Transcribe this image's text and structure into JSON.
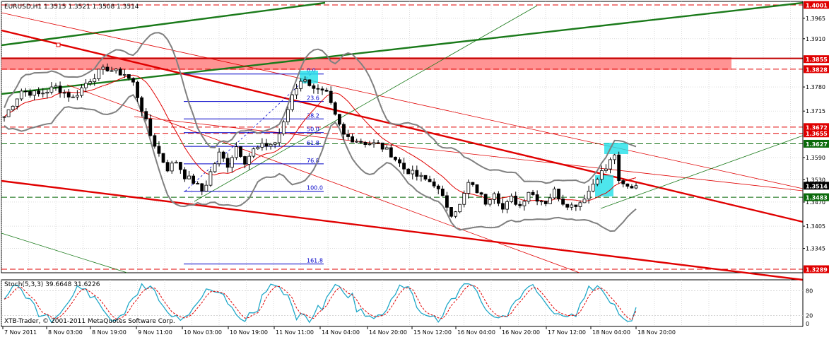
{
  "chart_data": [
    {
      "type": "candlestick",
      "symbol_header": "EURUSD,H1  1.3515 1.3521 1.3508 1.3514",
      "ylim": [
        1.3289,
        1.4001
      ],
      "price_ticks": [
        "1.3965",
        "1.3910",
        "1.3780",
        "1.3715",
        "1.3590",
        "1.3530",
        "1.3470",
        "1.3405",
        "1.3345"
      ],
      "price_tags": [
        {
          "label": "1.4001",
          "price": 1.4001,
          "color": "#e00000"
        },
        {
          "label": "1.3855",
          "price": 1.3855,
          "color": "#e00000"
        },
        {
          "label": "1.3828",
          "price": 1.3828,
          "color": "#e00000"
        },
        {
          "label": "1.3672",
          "price": 1.3672,
          "color": "#e00000"
        },
        {
          "label": "1.3655",
          "price": 1.3655,
          "color": "#e00000"
        },
        {
          "label": "1.3627",
          "price": 1.3627,
          "color": "#0a6a0a"
        },
        {
          "label": "1.3514",
          "price": 1.3514,
          "color": "#000000"
        },
        {
          "label": "1.3483",
          "price": 1.3483,
          "color": "#0a6a0a"
        },
        {
          "label": "1.3289",
          "price": 1.3289,
          "color": "#e00000"
        }
      ],
      "dashed_levels": [
        {
          "price": 1.4001,
          "color": "#e00000"
        },
        {
          "price": 1.3828,
          "color": "#e00000"
        },
        {
          "price": 1.3672,
          "color": "#e00000"
        },
        {
          "price": 1.3655,
          "color": "#e00000"
        },
        {
          "price": 1.3627,
          "color": "#0a6a0a"
        },
        {
          "price": 1.3483,
          "color": "#0a6a0a"
        },
        {
          "price": 1.3289,
          "color": "#e00000"
        }
      ],
      "resistance_zone": {
        "top": 1.386,
        "bottom": 1.3826,
        "color": "#ff8080"
      },
      "fibonacci": [
        {
          "label": "0.0",
          "price": 1.3815
        },
        {
          "label": "23.6",
          "price": 1.3741
        },
        {
          "label": "38.2",
          "price": 1.3694
        },
        {
          "label": "50.0",
          "price": 1.3657
        },
        {
          "label": "61.8",
          "price": 1.362
        },
        {
          "label": "76.8",
          "price": 1.3573
        },
        {
          "label": "100.0",
          "price": 1.3499
        },
        {
          "label": "161.8",
          "price": 1.3303
        }
      ],
      "x_ticks": [
        "7 Nov 2011",
        "8 Nov 03:00",
        "8 Nov 19:00",
        "9 Nov 11:00",
        "10 Nov 03:00",
        "10 Nov 19:00",
        "11 Nov 11:00",
        "14 Nov 04:00",
        "14 Nov 20:00",
        "15 Nov 12:00",
        "16 Nov 04:00",
        "16 Nov 20:00",
        "17 Nov 12:00",
        "18 Nov 04:00",
        "18 Nov 20:00"
      ],
      "close_path": [
        [
          0,
          1.37
        ],
        [
          4,
          1.377
        ],
        [
          8,
          1.376
        ],
        [
          12,
          1.378
        ],
        [
          16,
          1.375
        ],
        [
          19,
          1.379
        ],
        [
          22,
          1.382
        ],
        [
          24,
          1.383
        ],
        [
          26,
          1.382
        ],
        [
          28,
          1.3815
        ],
        [
          30,
          1.379
        ],
        [
          32,
          1.372
        ],
        [
          34,
          1.365
        ],
        [
          36,
          1.36
        ],
        [
          38,
          1.356
        ],
        [
          40,
          1.358
        ],
        [
          42,
          1.354
        ],
        [
          44,
          1.3525
        ],
        [
          46,
          1.35
        ],
        [
          47,
          1.352
        ],
        [
          48,
          1.355
        ],
        [
          50,
          1.36
        ],
        [
          52,
          1.357
        ],
        [
          54,
          1.362
        ],
        [
          56,
          1.358
        ],
        [
          58,
          1.361
        ],
        [
          60,
          1.362
        ],
        [
          63,
          1.363
        ],
        [
          65,
          1.368
        ],
        [
          67,
          1.376
        ],
        [
          69,
          1.38
        ],
        [
          71,
          1.379
        ],
        [
          73,
          1.377
        ],
        [
          75,
          1.376
        ],
        [
          77,
          1.37
        ],
        [
          79,
          1.365
        ],
        [
          81,
          1.364
        ],
        [
          84,
          1.363
        ],
        [
          87,
          1.3625
        ],
        [
          90,
          1.36
        ],
        [
          93,
          1.356
        ],
        [
          96,
          1.354
        ],
        [
          98,
          1.353
        ],
        [
          100,
          1.352
        ],
        [
          102,
          1.348
        ],
        [
          104,
          1.344
        ],
        [
          106,
          1.346
        ],
        [
          108,
          1.352
        ],
        [
          110,
          1.35
        ],
        [
          112,
          1.347
        ],
        [
          114,
          1.35
        ],
        [
          116,
          1.345
        ],
        [
          118,
          1.348
        ],
        [
          120,
          1.346
        ],
        [
          122,
          1.35
        ],
        [
          124,
          1.348
        ],
        [
          126,
          1.347
        ],
        [
          128,
          1.35
        ],
        [
          130,
          1.347
        ],
        [
          132,
          1.346
        ],
        [
          134,
          1.347
        ],
        [
          136,
          1.35
        ],
        [
          138,
          1.354
        ],
        [
          140,
          1.356
        ],
        [
          142,
          1.36
        ],
        [
          143,
          1.352
        ],
        [
          145,
          1.351
        ],
        [
          147,
          1.3514
        ]
      ],
      "stochastic": {
        "title": "Stoch(5,3,3) 39.6648 31.6226",
        "k": 39.6648,
        "d": 31.6226,
        "ylim": [
          0,
          100
        ],
        "ticks": [
          "80",
          "20",
          "0"
        ],
        "levels": [
          80,
          20
        ],
        "k_color": "#20a8c8",
        "d_color": "#e00000"
      },
      "ma_color": "#e00000",
      "bands_color": "#808080",
      "highlight_color": "#20e0e8"
    }
  ],
  "footer": "XTB-Trader, © 2001-2011 MetaQuotes Software Corp."
}
